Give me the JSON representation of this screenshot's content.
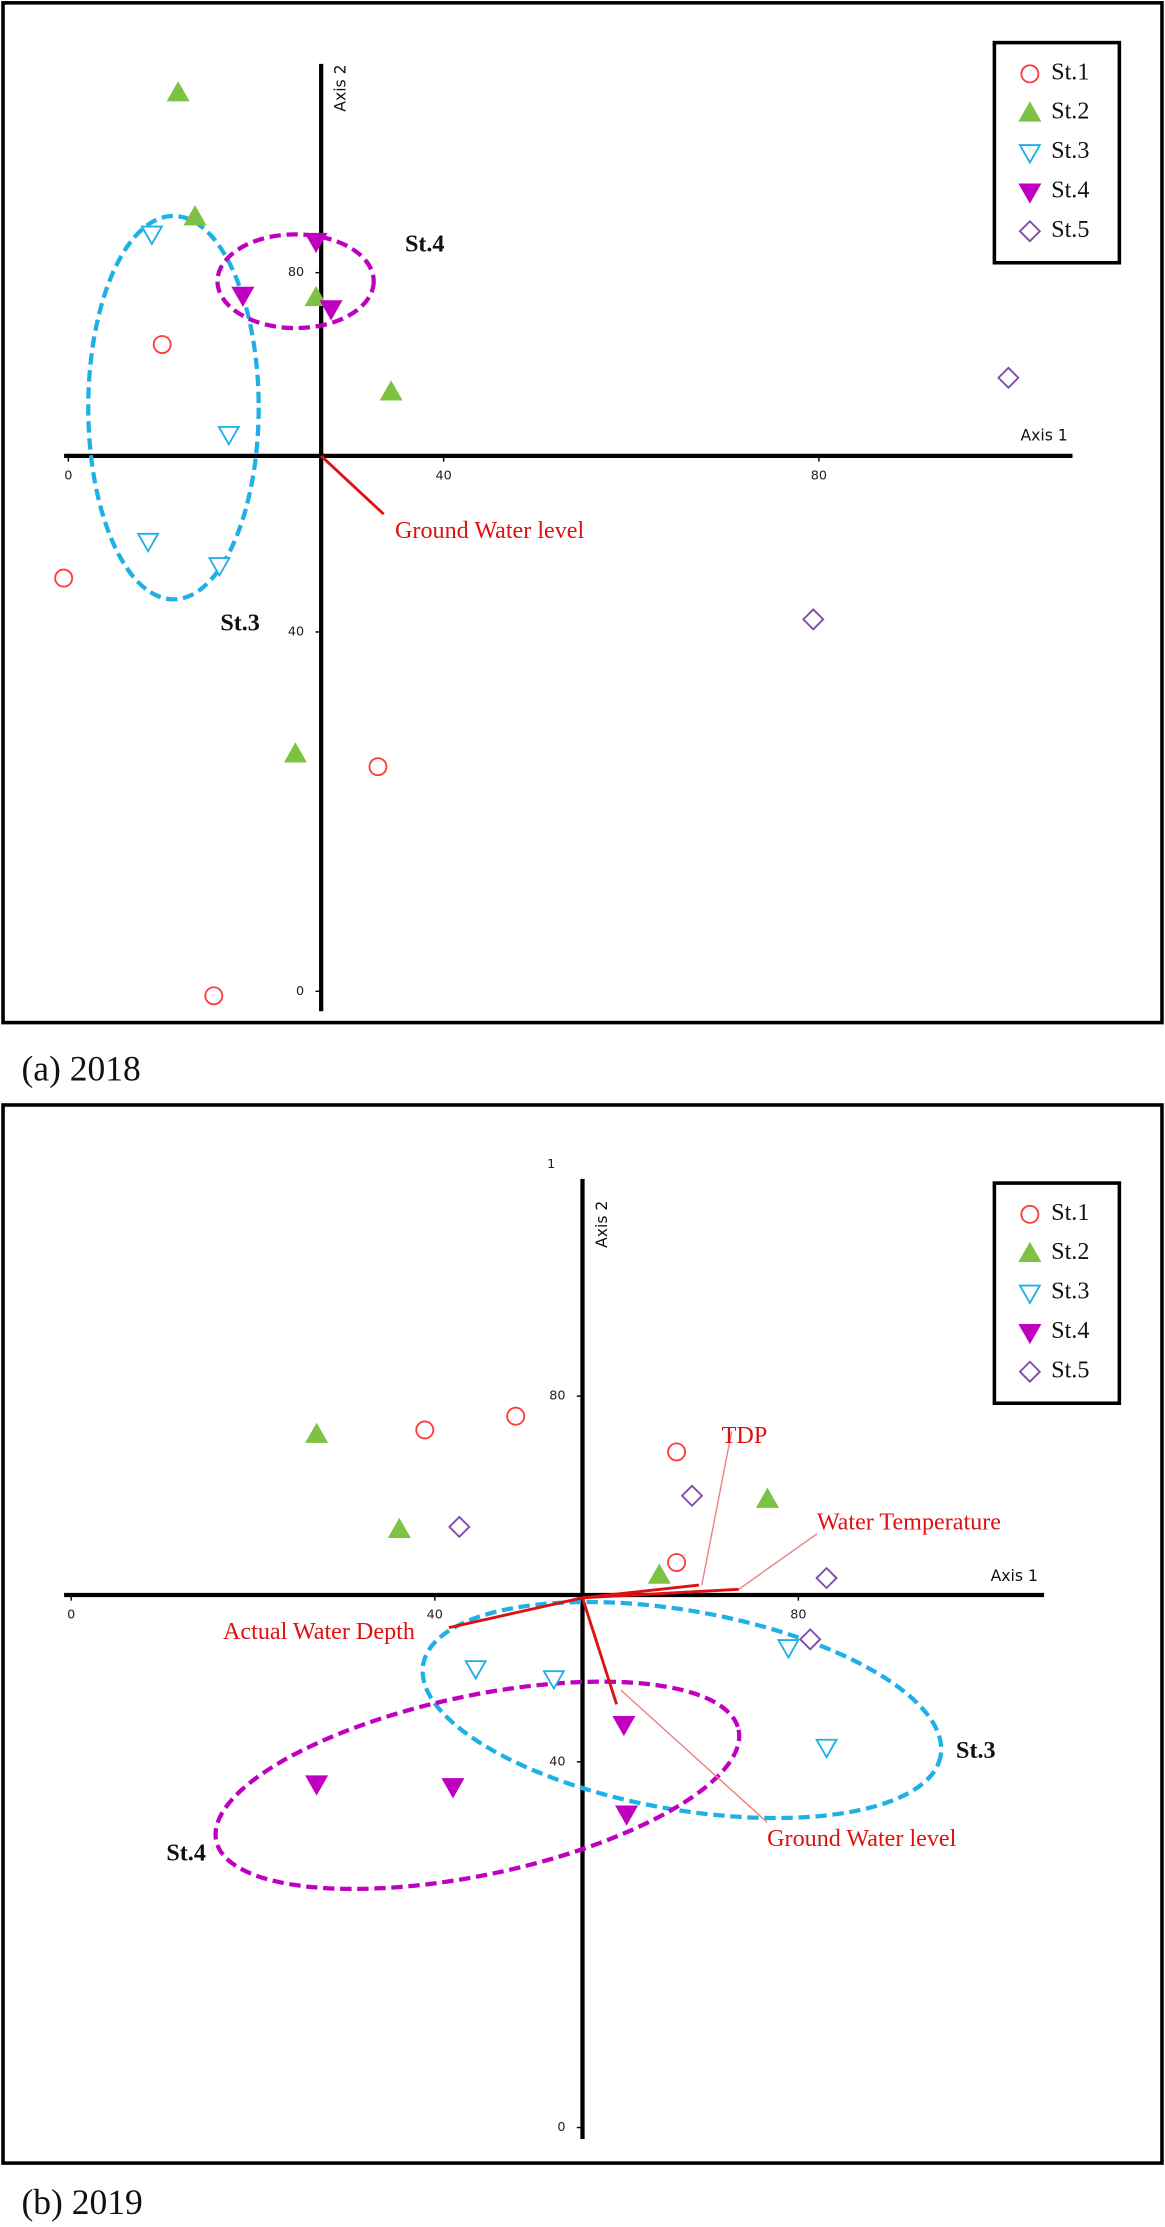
{
  "chart_data": [
    {
      "type": "scatter",
      "caption": "(a) 2018",
      "x_label": "Axis 1",
      "y_label": "Axis 2",
      "xlim": [
        -1,
        107
      ],
      "ylim": [
        -2,
        103
      ],
      "xticks": [
        0,
        40,
        80
      ],
      "yticks": [
        0,
        40,
        80
      ],
      "series": [
        {
          "name": "St.1",
          "color": "#ff3b3b",
          "marker": "circle-open",
          "x": [
            10,
            -0.5,
            33,
            15.5
          ],
          "y": [
            72,
            46,
            25,
            -0.5
          ]
        },
        {
          "name": "St.2",
          "color": "#7dc242",
          "marker": "triangle-up",
          "x": [
            11.7,
            13.5,
            26.4,
            34.4,
            24.2
          ],
          "y": [
            100,
            86.2,
            77.2,
            66.7,
            26.4
          ]
        },
        {
          "name": "St.3",
          "color": "#1fb0e6",
          "marker": "triangle-down-open",
          "x": [
            8.9,
            17.1,
            8.5,
            16.1
          ],
          "y": [
            84.3,
            62,
            50.1,
            47.4
          ]
        },
        {
          "name": "St.4",
          "color": "#c000c0",
          "marker": "triangle-down",
          "x": [
            26.4,
            18.6,
            28
          ],
          "y": [
            83.5,
            77.5,
            76
          ]
        },
        {
          "name": "St.5",
          "color": "#7f4aa8",
          "marker": "diamond-open",
          "x": [
            100.2,
            79.4
          ],
          "y": [
            68.3,
            41.4
          ]
        }
      ],
      "vectors": [
        {
          "label": "Ground Water level"
        }
      ],
      "groups": [
        {
          "label": "St.3",
          "color": "#1fb0e6"
        },
        {
          "label": "St.4",
          "color": "#c000c0"
        }
      ]
    },
    {
      "type": "scatter",
      "caption": "(b) 2019",
      "x_label": "Axis 1",
      "y_label": "Axis 2",
      "annotation": "1",
      "xlim": [
        -1,
        107
      ],
      "ylim": [
        -1,
        104
      ],
      "xticks": [
        0,
        40,
        80
      ],
      "yticks": [
        0,
        40,
        80
      ],
      "series": [
        {
          "name": "St.1",
          "color": "#ff3b3b",
          "marker": "circle-open",
          "x": [
            38.9,
            48.9,
            66.6,
            66.6
          ],
          "y": [
            76.3,
            77.8,
            73.9,
            61.8
          ]
        },
        {
          "name": "St.2",
          "color": "#7dc242",
          "marker": "triangle-up",
          "x": [
            27,
            36.1,
            76.6,
            64.7
          ],
          "y": [
            75.8,
            65.4,
            68.7,
            60.4
          ]
        },
        {
          "name": "St.3",
          "color": "#1fb0e6",
          "marker": "triangle-down-open",
          "x": [
            44.5,
            53.1,
            78.9,
            83.1
          ],
          "y": [
            50.2,
            49.1,
            52.5,
            41.6
          ]
        },
        {
          "name": "St.4",
          "color": "#c000c0",
          "marker": "triangle-down",
          "x": [
            60.8,
            27,
            42,
            61.1
          ],
          "y": [
            44.1,
            37.6,
            37.3,
            34.3
          ]
        },
        {
          "name": "St.5",
          "color": "#7f4aa8",
          "marker": "diamond-open",
          "x": [
            42.7,
            68.3,
            83.1,
            81.3
          ],
          "y": [
            65.7,
            69.1,
            60.1,
            53.4
          ]
        }
      ],
      "vectors": [
        {
          "label": "Actual Water Depth"
        },
        {
          "label": "TDP"
        },
        {
          "label": "Water Temperature"
        },
        {
          "label": "Ground Water level"
        }
      ],
      "groups": [
        {
          "label": "St.3",
          "color": "#1fb0e6"
        },
        {
          "label": "St.4",
          "color": "#c000c0"
        }
      ]
    }
  ]
}
